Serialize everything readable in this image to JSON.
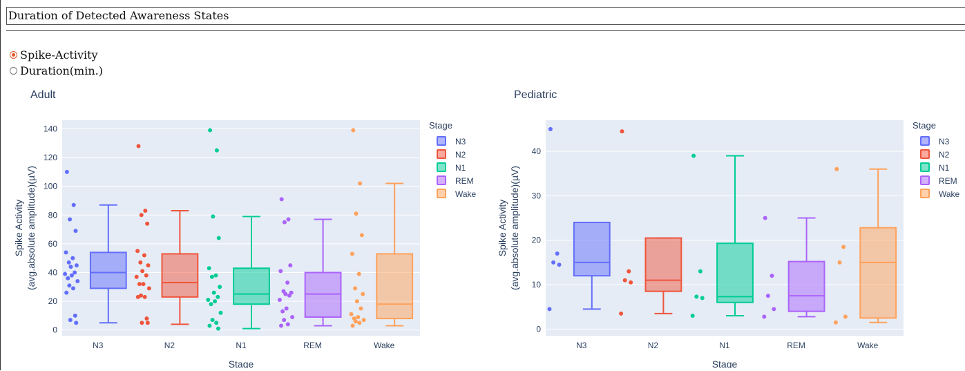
{
  "page": {
    "title": "Duration of Detected Awareness States",
    "radio_options": [
      {
        "label": "Spike-Activity",
        "checked": true
      },
      {
        "label": "Duration(min.)",
        "checked": false
      }
    ]
  },
  "colors": {
    "N3": "#636efa",
    "N2": "#ef553b",
    "N1": "#00cc96",
    "REM": "#ab63fa",
    "Wake": "#ffa15a",
    "plot_bg": "#e5ecf6"
  },
  "chart_data": [
    {
      "type": "box",
      "title": "Adult",
      "xlabel": "Stage",
      "ylabel_lines": [
        "Spike Activity",
        "(avg.absolute amplitude)(µV)"
      ],
      "legend_title": "Stage",
      "legend_position": "right",
      "categories": [
        "N3",
        "N2",
        "N1",
        "REM",
        "Wake"
      ],
      "ylim": [
        -4,
        146
      ],
      "yticks": [
        0,
        20,
        40,
        60,
        80,
        100,
        120,
        140
      ],
      "grid": true,
      "series": [
        {
          "name": "N3",
          "box": {
            "min": 5,
            "q1": 29,
            "median": 40,
            "q3": 54,
            "max": 87
          },
          "points": [
            110,
            87,
            77,
            69,
            54,
            50,
            47,
            45,
            44,
            40,
            39,
            38,
            36,
            34,
            31,
            29,
            26,
            10,
            7,
            5
          ]
        },
        {
          "name": "N2",
          "box": {
            "min": 4,
            "q1": 23,
            "median": 33,
            "q3": 53,
            "max": 83
          },
          "points": [
            128,
            83,
            80,
            74,
            55,
            52,
            47,
            45,
            41,
            38,
            37,
            32,
            32,
            29,
            24,
            23,
            23,
            8,
            5,
            5
          ]
        },
        {
          "name": "N1",
          "box": {
            "min": 1,
            "q1": 18,
            "median": 25,
            "q3": 43,
            "max": 79
          },
          "points": [
            139,
            125,
            79,
            64,
            43,
            38,
            37,
            30,
            26,
            23,
            21,
            20,
            18,
            12,
            7,
            5,
            3,
            1
          ]
        },
        {
          "name": "REM",
          "box": {
            "min": 3,
            "q1": 9,
            "median": 25,
            "q3": 40,
            "max": 77
          },
          "points": [
            91,
            77,
            75,
            45,
            41,
            33,
            27,
            26,
            25,
            24,
            21,
            15,
            13,
            9,
            7,
            4,
            3
          ]
        },
        {
          "name": "Wake",
          "box": {
            "min": 3,
            "q1": 8,
            "median": 18,
            "q3": 53,
            "max": 102
          },
          "points": [
            139,
            102,
            81,
            66,
            53,
            39,
            29,
            25,
            20,
            15,
            11,
            9,
            8,
            7,
            6,
            5,
            3
          ]
        }
      ]
    },
    {
      "type": "box",
      "title": "Pediatric",
      "xlabel": "Stage",
      "ylabel_lines": [
        "Spike Activity",
        "(avg.absolute amplitude)(µV)"
      ],
      "legend_title": "Stage",
      "legend_position": "right",
      "categories": [
        "N3",
        "N2",
        "N1",
        "REM",
        "Wake"
      ],
      "ylim": [
        -1.5,
        47
      ],
      "yticks": [
        0,
        10,
        20,
        30,
        40
      ],
      "grid": true,
      "series": [
        {
          "name": "N3",
          "box": {
            "min": 4.5,
            "q1": 12,
            "median": 15,
            "q3": 24,
            "max": 24
          },
          "points": [
            45,
            17,
            15,
            14.5,
            4.5
          ]
        },
        {
          "name": "N2",
          "box": {
            "min": 3.5,
            "q1": 8.5,
            "median": 11,
            "q3": 20.5,
            "max": 20.5
          },
          "points": [
            44.5,
            13,
            11,
            10.5,
            3.5
          ]
        },
        {
          "name": "N1",
          "box": {
            "min": 3,
            "q1": 6,
            "median": 7.3,
            "q3": 19.3,
            "max": 39
          },
          "points": [
            39,
            13,
            7.3,
            7,
            3
          ]
        },
        {
          "name": "REM",
          "box": {
            "min": 2.8,
            "q1": 4,
            "median": 7.5,
            "q3": 15.2,
            "max": 25
          },
          "points": [
            25,
            12,
            7.5,
            4.5,
            2.8
          ]
        },
        {
          "name": "Wake",
          "box": {
            "min": 1.5,
            "q1": 2.5,
            "median": 15,
            "q3": 22.8,
            "max": 36
          },
          "points": [
            36,
            18.5,
            15,
            2.8,
            1.5
          ]
        }
      ]
    }
  ]
}
